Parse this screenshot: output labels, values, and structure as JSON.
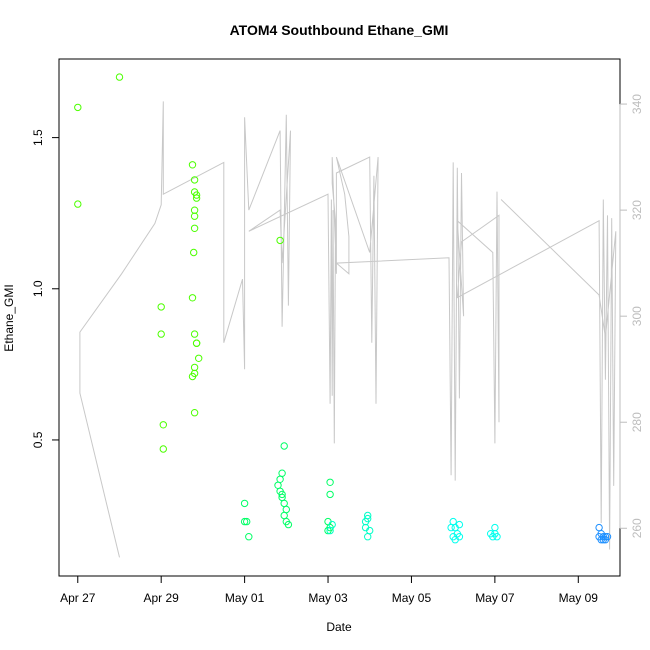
{
  "chart_data": {
    "type": "scatter",
    "title": "ATOM4 Southbound Ethane_GMI",
    "xlabel": "Date",
    "ylabel": "Ethane_GMI",
    "x_ticks": [
      "Apr 27",
      "Apr 29",
      "May 01",
      "May 03",
      "May 05",
      "May 07",
      "May 09"
    ],
    "x_tick_days": [
      0,
      2,
      4,
      6,
      8,
      10,
      12
    ],
    "xlim_days": [
      -0.45,
      13.0
    ],
    "y_ticks": [
      0.5,
      1.0,
      1.5
    ],
    "ylim": [
      0.05,
      1.76
    ],
    "y2_ticks": [
      260,
      280,
      300,
      320,
      340
    ],
    "y2lim": [
      251.0,
      348.5
    ],
    "colors": {
      "right_axis": "#bdbdbd",
      "secondary_line": "#c8c8c8",
      "point_green": "#4cff00",
      "point_spring": "#00ff66",
      "point_cyan": "#00ffee",
      "point_sky": "#00c8ff",
      "point_blue": "#1e90ff"
    },
    "series": [
      {
        "color": "#4cff00",
        "points": [
          [
            0.0,
            1.6
          ],
          [
            0.0,
            1.28
          ],
          [
            1.0,
            1.7
          ],
          [
            2.0,
            0.94
          ],
          [
            2.0,
            0.85
          ],
          [
            2.05,
            0.55
          ],
          [
            2.05,
            0.47
          ],
          [
            2.75,
            1.41
          ],
          [
            2.8,
            1.36
          ],
          [
            2.8,
            1.32
          ],
          [
            2.85,
            1.3
          ],
          [
            2.85,
            1.31
          ],
          [
            2.8,
            1.26
          ],
          [
            2.8,
            1.24
          ],
          [
            2.8,
            1.2
          ],
          [
            2.78,
            1.12
          ],
          [
            2.75,
            0.97
          ],
          [
            2.8,
            0.85
          ],
          [
            2.85,
            0.82
          ],
          [
            2.85,
            0.82
          ],
          [
            2.9,
            0.77
          ],
          [
            2.8,
            0.74
          ],
          [
            2.75,
            0.71
          ],
          [
            2.8,
            0.72
          ],
          [
            2.8,
            0.59
          ],
          [
            4.85,
            1.16
          ]
        ]
      },
      {
        "color": "#00ff66",
        "points": [
          [
            4.0,
            0.29
          ],
          [
            4.0,
            0.23
          ],
          [
            4.05,
            0.23
          ],
          [
            4.1,
            0.18
          ],
          [
            4.8,
            0.35
          ],
          [
            4.85,
            0.37
          ],
          [
            4.9,
            0.39
          ],
          [
            4.95,
            0.48
          ],
          [
            4.85,
            0.33
          ],
          [
            4.9,
            0.32
          ],
          [
            4.9,
            0.31
          ],
          [
            4.95,
            0.29
          ],
          [
            5.0,
            0.27
          ],
          [
            4.95,
            0.25
          ],
          [
            5.0,
            0.23
          ],
          [
            5.05,
            0.22
          ],
          [
            6.05,
            0.36
          ],
          [
            6.05,
            0.32
          ],
          [
            6.0,
            0.23
          ],
          [
            6.05,
            0.21
          ],
          [
            6.0,
            0.2
          ]
        ]
      },
      {
        "color": "#00ffc8",
        "points": [
          [
            6.1,
            0.22
          ],
          [
            6.05,
            0.2
          ],
          [
            6.95,
            0.25
          ],
          [
            6.9,
            0.23
          ],
          [
            6.95,
            0.24
          ],
          [
            6.9,
            0.21
          ],
          [
            7.0,
            0.2
          ],
          [
            6.95,
            0.18
          ]
        ]
      },
      {
        "color": "#00ffee",
        "points": [
          [
            8.95,
            0.21
          ],
          [
            9.0,
            0.23
          ],
          [
            9.05,
            0.21
          ],
          [
            9.1,
            0.19
          ],
          [
            9.15,
            0.22
          ],
          [
            9.0,
            0.18
          ],
          [
            9.05,
            0.17
          ],
          [
            9.15,
            0.18
          ],
          [
            9.9,
            0.19
          ],
          [
            9.95,
            0.18
          ],
          [
            10.0,
            0.21
          ],
          [
            10.0,
            0.19
          ],
          [
            10.05,
            0.18
          ]
        ]
      },
      {
        "color": "#1e90ff",
        "points": [
          [
            12.5,
            0.21
          ],
          [
            12.55,
            0.19
          ],
          [
            12.5,
            0.18
          ],
          [
            12.6,
            0.17
          ],
          [
            12.65,
            0.18
          ],
          [
            12.6,
            0.18
          ],
          [
            12.7,
            0.18
          ],
          [
            12.55,
            0.17
          ],
          [
            12.65,
            0.17
          ]
        ]
      }
    ],
    "secondary_line": {
      "axis": "right",
      "points": [
        [
          1.0,
          254.5
        ],
        [
          0.05,
          285.5
        ],
        [
          0.05,
          297.0
        ],
        [
          1.05,
          308.0
        ],
        [
          1.85,
          317.5
        ],
        [
          2.0,
          321.0
        ],
        [
          2.05,
          340.5
        ],
        [
          2.05,
          323.0
        ],
        [
          3.5,
          329.0
        ],
        [
          3.5,
          295.0
        ],
        [
          3.95,
          307.0
        ],
        [
          4.0,
          290.0
        ],
        [
          4.0,
          337.5
        ],
        [
          4.1,
          320.0
        ],
        [
          4.85,
          335.0
        ],
        [
          4.9,
          298.0
        ],
        [
          5.0,
          338.0
        ],
        [
          5.05,
          302.0
        ],
        [
          5.1,
          335.0
        ],
        [
          4.9,
          310.0
        ],
        [
          4.85,
          320.0
        ],
        [
          4.1,
          316.0
        ],
        [
          6.0,
          323.0
        ],
        [
          6.05,
          283.5
        ],
        [
          6.08,
          322.0
        ],
        [
          6.1,
          285.0
        ],
        [
          6.12,
          320.0
        ],
        [
          6.15,
          276.0
        ],
        [
          6.18,
          318.0
        ],
        [
          6.1,
          325.0
        ],
        [
          6.1,
          330.0
        ],
        [
          6.2,
          308.0
        ],
        [
          6.2,
          327.0
        ],
        [
          7.0,
          330.0
        ],
        [
          7.05,
          295.0
        ],
        [
          7.1,
          326.5
        ],
        [
          7.15,
          283.5
        ],
        [
          7.2,
          330.0
        ],
        [
          7.0,
          312.0
        ],
        [
          6.2,
          330.0
        ],
        [
          6.4,
          323.0
        ],
        [
          6.5,
          315.0
        ],
        [
          6.5,
          308.0
        ],
        [
          6.2,
          310.0
        ],
        [
          8.9,
          311.0
        ],
        [
          8.95,
          270.0
        ],
        [
          9.0,
          329.0
        ],
        [
          9.05,
          269.0
        ],
        [
          9.1,
          328.0
        ],
        [
          9.15,
          284.5
        ],
        [
          9.2,
          327.0
        ],
        [
          9.25,
          300.0
        ],
        [
          9.1,
          318.0
        ],
        [
          9.95,
          312.0
        ],
        [
          10.0,
          276.0
        ],
        [
          10.05,
          323.5
        ],
        [
          10.1,
          280.0
        ],
        [
          10.1,
          319.0
        ],
        [
          9.2,
          314.0
        ],
        [
          9.1,
          303.5
        ],
        [
          12.5,
          318.0
        ],
        [
          12.55,
          261.0
        ],
        [
          12.6,
          322.0
        ],
        [
          12.65,
          288.0
        ],
        [
          12.7,
          319.0
        ],
        [
          12.75,
          256.0
        ],
        [
          12.8,
          318.5
        ],
        [
          12.85,
          268.0
        ],
        [
          12.9,
          316.0
        ],
        [
          12.65,
          296.0
        ],
        [
          12.5,
          304.0
        ],
        [
          10.15,
          322.0
        ]
      ]
    }
  }
}
